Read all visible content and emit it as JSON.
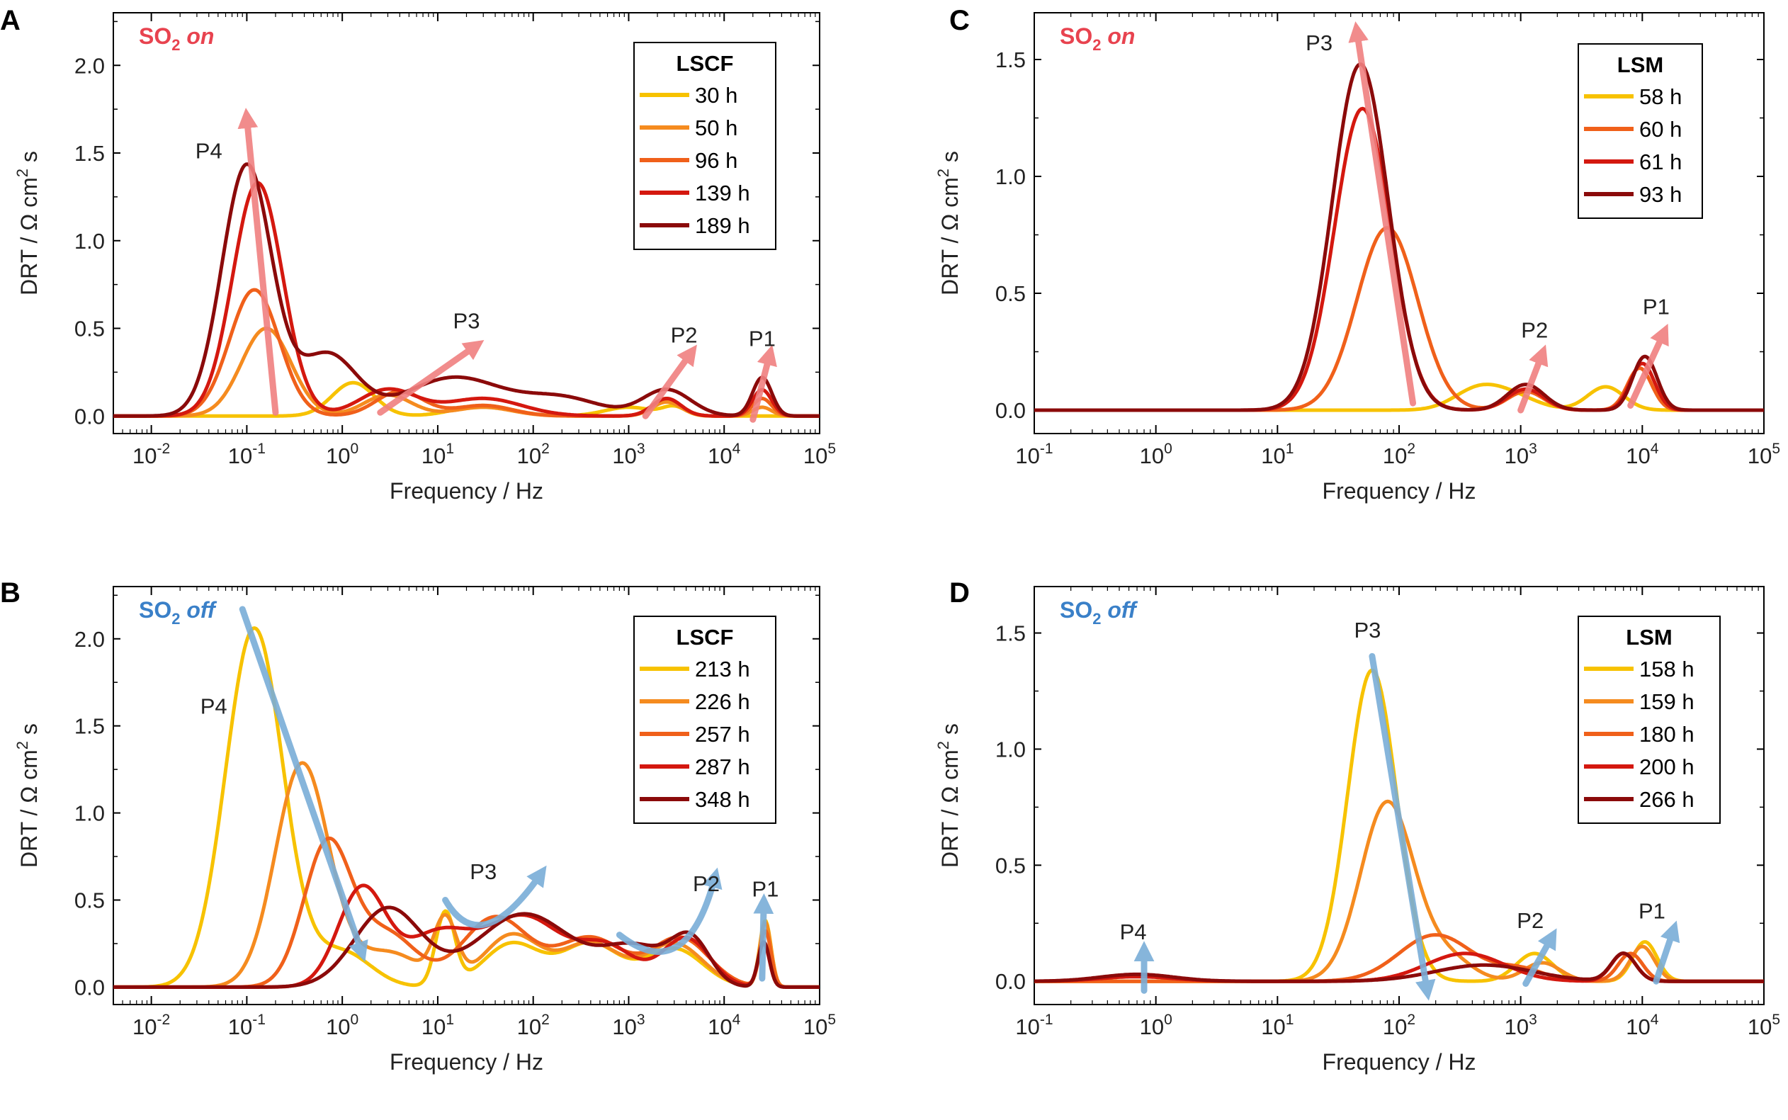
{
  "figure": {
    "xlabel": "Frequency / Hz",
    "ylabel_prefix": "DRT / Ω cm",
    "ylabel_sup": "2",
    "ylabel_suffix": " s"
  },
  "chart_data": [
    {
      "panel": "A",
      "type": "line",
      "log_x": true,
      "xlim": [
        0.004,
        100000
      ],
      "ylim": [
        -0.1,
        2.3
      ],
      "ymax_tick": 2.0,
      "x_tick_exponents": [
        -2,
        -1,
        0,
        1,
        2,
        3,
        4,
        5
      ],
      "y_ticks": [
        "0.0",
        "0.5",
        "1.0",
        "1.5",
        "2.0"
      ],
      "condition": {
        "pre": "SO",
        "sub": "2",
        "post": " on",
        "color": "#e8434f"
      },
      "legend": {
        "title": "LSCF",
        "position": "top-right"
      },
      "series": [
        {
          "name": "30 h",
          "color": "#f7c200",
          "peaks": [
            [
              1.3,
              0.19,
              0.22
            ],
            [
              30,
              0.06,
              0.3
            ],
            [
              1000,
              0.05,
              0.25
            ],
            [
              3000,
              0.05,
              0.12
            ]
          ]
        },
        {
          "name": "50 h",
          "color": "#f58b1f",
          "peaks": [
            [
              0.16,
              0.5,
              0.26
            ],
            [
              3,
              0.12,
              0.25
            ],
            [
              30,
              0.05,
              0.3
            ],
            [
              2500,
              0.08,
              0.15
            ],
            [
              25000,
              0.05,
              0.1
            ]
          ]
        },
        {
          "name": "96 h",
          "color": "#f0601a",
          "peaks": [
            [
              0.12,
              0.72,
              0.26
            ],
            [
              4,
              0.14,
              0.25
            ],
            [
              30,
              0.06,
              0.3
            ],
            [
              2500,
              0.1,
              0.15
            ],
            [
              25000,
              0.1,
              0.1
            ]
          ]
        },
        {
          "name": "139 h",
          "color": "#d4180f",
          "peaks": [
            [
              0.13,
              1.33,
              0.26
            ],
            [
              3,
              0.15,
              0.3
            ],
            [
              30,
              0.1,
              0.4
            ],
            [
              2500,
              0.1,
              0.15
            ],
            [
              25000,
              0.15,
              0.1
            ]
          ]
        },
        {
          "name": "189 h",
          "color": "#8b0a0a",
          "peaks": [
            [
              0.1,
              1.43,
              0.26
            ],
            [
              0.7,
              0.35,
              0.3
            ],
            [
              15,
              0.22,
              0.5
            ],
            [
              200,
              0.1,
              0.4
            ],
            [
              2500,
              0.15,
              0.25
            ],
            [
              25000,
              0.22,
              0.1
            ]
          ]
        }
      ],
      "arrows": [
        {
          "label": "P4",
          "from": [
            0.2,
            0.02
          ],
          "to": [
            0.1,
            1.7
          ]
        },
        {
          "label": "P3",
          "from": [
            2.5,
            0.02
          ],
          "to": [
            25,
            0.4
          ]
        },
        {
          "label": "P2",
          "from": [
            1500,
            0.0
          ],
          "to": [
            4500,
            0.36
          ]
        },
        {
          "label": "P1",
          "from": [
            20000,
            -0.02
          ],
          "to": [
            30000,
            0.35
          ]
        }
      ],
      "labels": [
        {
          "text": "P4",
          "x": 0.04,
          "y": 1.47
        },
        {
          "text": "P3",
          "x": 20,
          "y": 0.5
        },
        {
          "text": "P2",
          "x": 3800,
          "y": 0.42
        },
        {
          "text": "P1",
          "x": 25000,
          "y": 0.4
        }
      ]
    },
    {
      "panel": "B",
      "type": "line",
      "log_x": true,
      "xlim": [
        0.004,
        100000
      ],
      "ylim": [
        -0.1,
        2.3
      ],
      "ymax_tick": 2.0,
      "x_tick_exponents": [
        -2,
        -1,
        0,
        1,
        2,
        3,
        4,
        5
      ],
      "y_ticks": [
        "0.0",
        "0.5",
        "1.0",
        "1.5",
        "2.0"
      ],
      "condition": {
        "pre": "SO",
        "sub": "2",
        "post": " off",
        "color": "#3a80c8"
      },
      "legend": {
        "title": "LSCF",
        "position": "top-right"
      },
      "series": [
        {
          "name": "213 h",
          "color": "#f7c200",
          "peaks": [
            [
              0.12,
              2.06,
              0.3
            ],
            [
              1,
              0.2,
              0.3
            ],
            [
              12,
              0.42,
              0.1
            ],
            [
              60,
              0.25,
              0.3
            ],
            [
              400,
              0.25,
              0.3
            ],
            [
              3000,
              0.22,
              0.3
            ],
            [
              27000,
              0.38,
              0.06
            ]
          ]
        },
        {
          "name": "226 h",
          "color": "#f58b1f",
          "peaks": [
            [
              0.38,
              1.28,
              0.28
            ],
            [
              3,
              0.2,
              0.35
            ],
            [
              12,
              0.35,
              0.12
            ],
            [
              60,
              0.3,
              0.3
            ],
            [
              400,
              0.25,
              0.3
            ],
            [
              3000,
              0.25,
              0.3
            ],
            [
              27000,
              0.37,
              0.06
            ]
          ]
        },
        {
          "name": "257 h",
          "color": "#f0601a",
          "peaks": [
            [
              0.7,
              0.82,
              0.25
            ],
            [
              3,
              0.3,
              0.3
            ],
            [
              40,
              0.4,
              0.35
            ],
            [
              400,
              0.28,
              0.35
            ],
            [
              3500,
              0.28,
              0.3
            ],
            [
              27000,
              0.32,
              0.06
            ]
          ]
        },
        {
          "name": "287 h",
          "color": "#d4180f",
          "peaks": [
            [
              1.6,
              0.56,
              0.25
            ],
            [
              10,
              0.3,
              0.35
            ],
            [
              80,
              0.4,
              0.4
            ],
            [
              600,
              0.22,
              0.3
            ],
            [
              4000,
              0.28,
              0.25
            ],
            [
              26000,
              0.25,
              0.06
            ]
          ]
        },
        {
          "name": "348 h",
          "color": "#8b0a0a",
          "peaks": [
            [
              3,
              0.45,
              0.35
            ],
            [
              80,
              0.42,
              0.5
            ],
            [
              1200,
              0.22,
              0.35
            ],
            [
              4500,
              0.25,
              0.2
            ],
            [
              26000,
              0.26,
              0.06
            ]
          ]
        }
      ],
      "arrows": [
        {
          "label": "P4",
          "from": [
            0.09,
            2.17
          ],
          "to": [
            1.6,
            0.2
          ]
        },
        {
          "label": "P3",
          "from": [
            12,
            0.5
          ],
          "to": [
            120,
            0.65
          ],
          "via": [
            28,
            0.15
          ]
        },
        {
          "label": "P2",
          "from": [
            800,
            0.3
          ],
          "to": [
            8000,
            0.63
          ],
          "via": [
            4000,
            0.0
          ]
        },
        {
          "label": "P1",
          "from": [
            25000,
            0.05
          ],
          "to": [
            26000,
            0.48
          ]
        }
      ],
      "labels": [
        {
          "text": "P4",
          "x": 0.045,
          "y": 1.57
        },
        {
          "text": "P3",
          "x": 30,
          "y": 0.62
        },
        {
          "text": "P2",
          "x": 6500,
          "y": 0.55
        },
        {
          "text": "P1",
          "x": 27000,
          "y": 0.52
        }
      ]
    },
    {
      "panel": "C",
      "type": "line",
      "log_x": true,
      "xlim": [
        0.1,
        100000
      ],
      "ylim": [
        -0.1,
        1.7
      ],
      "ymax_tick": 1.5,
      "x_tick_exponents": [
        -1,
        0,
        1,
        2,
        3,
        4,
        5
      ],
      "y_ticks": [
        "0.0",
        "0.5",
        "1.0",
        "1.5"
      ],
      "condition": {
        "pre": "SO",
        "sub": "2",
        "post": " on",
        "color": "#e8434f"
      },
      "legend": {
        "title": "LSM",
        "position": "top-right"
      },
      "series": [
        {
          "name": "58 h",
          "color": "#f7c200",
          "peaks": [
            [
              450,
              0.09,
              0.2
            ],
            [
              900,
              0.05,
              0.2
            ],
            [
              5000,
              0.1,
              0.15
            ]
          ]
        },
        {
          "name": "60 h",
          "color": "#f0601a",
          "peaks": [
            [
              80,
              0.78,
              0.25
            ],
            [
              1100,
              0.08,
              0.15
            ],
            [
              9500,
              0.18,
              0.1
            ]
          ]
        },
        {
          "name": "61 h",
          "color": "#d4180f",
          "peaks": [
            [
              50,
              1.29,
              0.23
            ],
            [
              1100,
              0.09,
              0.15
            ],
            [
              10000,
              0.2,
              0.1
            ]
          ]
        },
        {
          "name": "93 h",
          "color": "#8b0a0a",
          "peaks": [
            [
              48,
              1.48,
              0.23
            ],
            [
              1100,
              0.11,
              0.15
            ],
            [
              10500,
              0.23,
              0.1
            ]
          ]
        }
      ],
      "arrows": [
        {
          "label": "P3",
          "from": [
            130,
            0.03
          ],
          "to": [
            45,
            1.62
          ]
        },
        {
          "label": "P2",
          "from": [
            1000,
            0.0
          ],
          "to": [
            1500,
            0.24
          ]
        },
        {
          "label": "P1",
          "from": [
            8000,
            0.02
          ],
          "to": [
            15000,
            0.33
          ]
        }
      ],
      "labels": [
        {
          "text": "P3",
          "x": 22,
          "y": 1.54
        },
        {
          "text": "P2",
          "x": 1300,
          "y": 0.31
        },
        {
          "text": "P1",
          "x": 13000,
          "y": 0.41
        }
      ]
    },
    {
      "panel": "D",
      "type": "line",
      "log_x": true,
      "xlim": [
        0.1,
        100000
      ],
      "ylim": [
        -0.1,
        1.7
      ],
      "ymax_tick": 1.5,
      "x_tick_exponents": [
        -1,
        0,
        1,
        2,
        3,
        4,
        5
      ],
      "y_ticks": [
        "0.0",
        "0.5",
        "1.0",
        "1.5"
      ],
      "condition": {
        "pre": "SO",
        "sub": "2",
        "post": " off",
        "color": "#3a80c8"
      },
      "legend": {
        "title": "LSM",
        "position": "top-right"
      },
      "series": [
        {
          "name": "158 h",
          "color": "#f7c200",
          "peaks": [
            [
              60,
              1.34,
              0.2
            ],
            [
              1300,
              0.12,
              0.15
            ],
            [
              10500,
              0.17,
              0.1
            ]
          ]
        },
        {
          "name": "159 h",
          "color": "#f58b1f",
          "peaks": [
            [
              80,
              0.77,
              0.22
            ],
            [
              250,
              0.1,
              0.2
            ],
            [
              1500,
              0.08,
              0.15
            ],
            [
              10000,
              0.15,
              0.1
            ]
          ]
        },
        {
          "name": "180 h",
          "color": "#f0601a",
          "peaks": [
            [
              200,
              0.2,
              0.3
            ],
            [
              1000,
              0.05,
              0.2
            ],
            [
              8000,
              0.12,
              0.1
            ]
          ]
        },
        {
          "name": "200 h",
          "color": "#d4180f",
          "peaks": [
            [
              0.7,
              0.02,
              0.3
            ],
            [
              350,
              0.12,
              0.32
            ],
            [
              7000,
              0.12,
              0.1
            ]
          ]
        },
        {
          "name": "266 h",
          "color": "#8b0a0a",
          "peaks": [
            [
              0.7,
              0.03,
              0.3
            ],
            [
              500,
              0.07,
              0.4
            ],
            [
              7000,
              0.12,
              0.1
            ]
          ]
        }
      ],
      "arrows": [
        {
          "label": "P4",
          "from": [
            0.8,
            -0.04
          ],
          "to": [
            0.8,
            0.13
          ]
        },
        {
          "label": "P3",
          "from": [
            60,
            1.4
          ],
          "to": [
            170,
            -0.04
          ]
        },
        {
          "label": "P2",
          "from": [
            1100,
            -0.01
          ],
          "to": [
            1800,
            0.19
          ]
        },
        {
          "label": "P1",
          "from": [
            13000,
            0.0
          ],
          "to": [
            18000,
            0.22
          ]
        }
      ],
      "labels": [
        {
          "text": "P4",
          "x": 0.65,
          "y": 0.18
        },
        {
          "text": "P3",
          "x": 55,
          "y": 1.48
        },
        {
          "text": "P2",
          "x": 1200,
          "y": 0.23
        },
        {
          "text": "P1",
          "x": 12000,
          "y": 0.27
        }
      ]
    }
  ]
}
